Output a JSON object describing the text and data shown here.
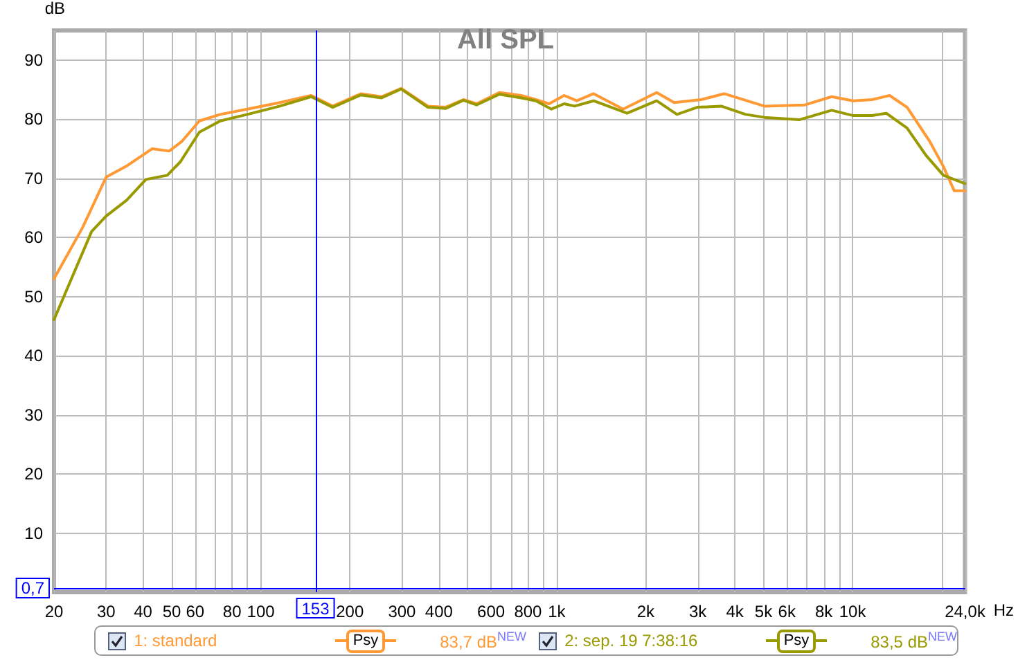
{
  "chart_data": {
    "type": "line",
    "title": "All SPL",
    "ylabel": "dB",
    "xlabel": "Hz",
    "log": "x",
    "grid": true,
    "legend": "bottom",
    "marker": "none",
    "line_style": "solid",
    "xlim": [
      20,
      24000
    ],
    "ylim": [
      0,
      95
    ],
    "xticks": [
      20,
      30,
      40,
      50,
      60,
      {
        "value": 70,
        "label": null
      },
      80,
      {
        "value": 90,
        "label": null
      },
      100,
      200,
      300,
      400,
      {
        "value": 500,
        "label": null
      },
      600,
      {
        "value": 700,
        "label": null
      },
      800,
      {
        "value": 900,
        "label": null
      },
      {
        "value": 1000,
        "label": "1k"
      },
      {
        "value": 2000,
        "label": "2k"
      },
      {
        "value": 3000,
        "label": "3k"
      },
      {
        "value": 4000,
        "label": "4k"
      },
      {
        "value": 5000,
        "label": "5k"
      },
      {
        "value": 6000,
        "label": "6k"
      },
      {
        "value": 7000,
        "label": null
      },
      {
        "value": 8000,
        "label": "8k"
      },
      {
        "value": 9000,
        "label": null
      },
      {
        "value": 10000,
        "label": "10k"
      },
      {
        "value": 20000,
        "label": null
      },
      {
        "value": 24000,
        "label": "24,0k"
      }
    ],
    "yticks": [
      10,
      20,
      30,
      40,
      50,
      60,
      70,
      80,
      90
    ],
    "ref_lines": [
      {
        "axis": "x",
        "value": 153,
        "label": "153",
        "color": "#0000ff"
      },
      {
        "axis": "y",
        "value": 0.7,
        "label": "0,7",
        "color": "#0000ff"
      }
    ],
    "annotations": [
      "Psy",
      "83,7 dB$^{NEW}$",
      "Psy",
      "83,5 dB$^{NEW}$"
    ],
    "series": [
      {
        "name": "1: standard",
        "color": "#ff9933",
        "x": [
          20,
          25,
          30,
          35,
          43,
          49,
          54,
          62,
          73,
          90,
          116,
          148,
          175,
          218,
          256,
          298,
          367,
          421,
          484,
          536,
          640,
          759,
          850,
          943,
          1060,
          1170,
          1333,
          1678,
          2178,
          2495,
          3077,
          3680,
          5034,
          6900,
          8500,
          10050,
          11640,
          13340,
          15290,
          18250,
          20280,
          22050,
          24000
        ],
        "values": [
          53.0,
          61.7,
          70.2,
          72.0,
          75.0,
          74.6,
          76.2,
          79.7,
          80.8,
          81.7,
          82.8,
          84.0,
          82.2,
          84.3,
          83.8,
          85.2,
          82.2,
          82.0,
          83.3,
          82.6,
          84.5,
          84.0,
          83.3,
          82.6,
          84.0,
          83.1,
          84.3,
          81.7,
          84.5,
          82.8,
          83.3,
          84.3,
          82.2,
          82.4,
          83.8,
          83.1,
          83.3,
          84.0,
          82.0,
          76.2,
          72.0,
          67.9,
          67.9
        ]
      },
      {
        "name": "2: sep. 19 7:38:16",
        "color": "#999900",
        "x": [
          20,
          26.8,
          30,
          35.2,
          40.9,
          48.3,
          53.5,
          62,
          73,
          90,
          116,
          148,
          175,
          218,
          256,
          298,
          367,
          421,
          484,
          536,
          640,
          759,
          850,
          960,
          1060,
          1150,
          1333,
          1730,
          2178,
          2550,
          2985,
          3600,
          4350,
          5034,
          6610,
          8500,
          10050,
          11640,
          13000,
          15290,
          17700,
          20280,
          24000
        ],
        "values": [
          46.1,
          61.0,
          63.6,
          66.3,
          69.8,
          70.5,
          72.8,
          77.8,
          79.7,
          80.8,
          82.2,
          83.8,
          82.0,
          84.1,
          83.6,
          85.1,
          82.0,
          81.8,
          83.2,
          82.4,
          84.2,
          83.6,
          83.1,
          81.7,
          82.6,
          82.2,
          83.1,
          81.0,
          83.1,
          80.8,
          82.0,
          82.2,
          80.8,
          80.3,
          79.9,
          81.5,
          80.6,
          80.6,
          81.0,
          78.5,
          73.9,
          70.5,
          69.1
        ]
      }
    ]
  }
}
